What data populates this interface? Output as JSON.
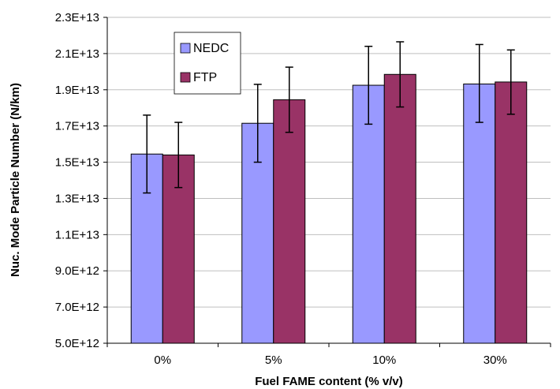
{
  "chart_data": {
    "type": "bar",
    "title": "",
    "xlabel": "Fuel FAME content (% v/v)",
    "ylabel": "Nuc. Mode Particle Number (N/km)",
    "categories": [
      "0%",
      "5%",
      "10%",
      "30%"
    ],
    "series": [
      {
        "name": "NEDC",
        "color": "#9999FF",
        "values": [
          15450000000000.0,
          17150000000000.0,
          19250000000000.0,
          19320000000000.0
        ],
        "error_low": [
          13300000000000.0,
          15000000000000.0,
          17100000000000.0,
          17200000000000.0
        ],
        "error_high": [
          17600000000000.0,
          19300000000000.0,
          21400000000000.0,
          21500000000000.0
        ]
      },
      {
        "name": "FTP",
        "color": "#993366",
        "values": [
          15400000000000.0,
          18450000000000.0,
          19850000000000.0,
          19430000000000.0
        ],
        "error_low": [
          13600000000000.0,
          16650000000000.0,
          18050000000000.0,
          17650000000000.0
        ],
        "error_high": [
          17200000000000.0,
          20250000000000.0,
          21650000000000.0,
          21200000000000.0
        ]
      }
    ],
    "ylim": [
      5000000000000.0,
      23000000000000.0
    ],
    "yticks": [
      5000000000000.0,
      7000000000000.0,
      9000000000000.0,
      11000000000000.0,
      13000000000000.0,
      15000000000000.0,
      17000000000000.0,
      19000000000000.0,
      21000000000000.0,
      23000000000000.0
    ],
    "ytick_labels": [
      "5.0E+12",
      "7.0E+12",
      "9.0E+12",
      "1.1E+13",
      "1.3E+13",
      "1.5E+13",
      "1.7E+13",
      "1.9E+13",
      "2.1E+13",
      "2.3E+13"
    ],
    "grid": true,
    "legend_position": "top-left"
  }
}
